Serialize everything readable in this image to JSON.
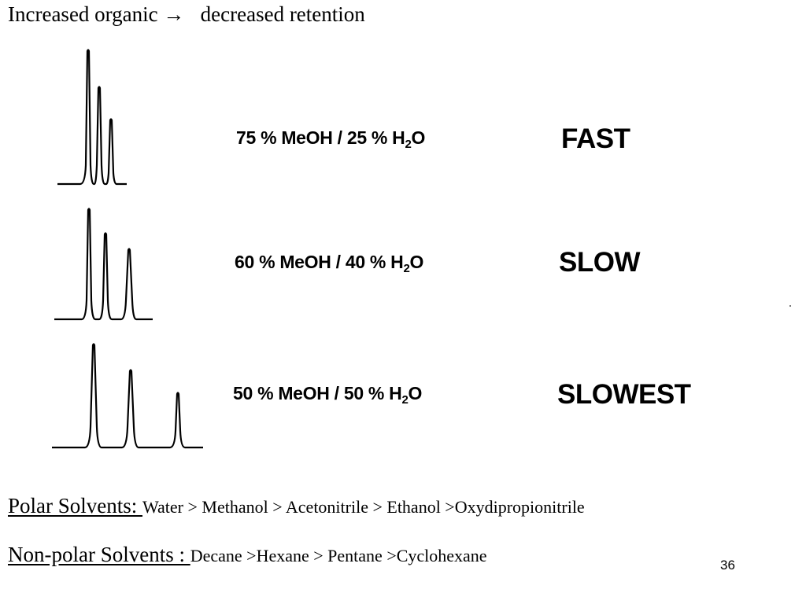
{
  "slide": {
    "title": "Increased organic →   decreased retention",
    "rows": [
      {
        "condition_main": "75 % MeOH / 25 % H",
        "condition_sub": "2",
        "condition_end": "O",
        "speed": "FAST"
      },
      {
        "condition_main": "60 % MeOH / 40 % H",
        "condition_sub": "2",
        "condition_end": "O",
        "speed": "SLOW"
      },
      {
        "condition_main": "50 % MeOH / 50 % H",
        "condition_sub": "2",
        "condition_end": "O",
        "speed": "SLOWEST"
      }
    ],
    "polar": {
      "label": "Polar Solvents: ",
      "list": "Water > Methanol > Acetonitrile > Ethanol >Oxydipropionitrile"
    },
    "nonpolar": {
      "label": "Non-polar Solvents : ",
      "list": "Decane >Hexane > Pentane >Cyclohexane"
    },
    "page_number": "36"
  }
}
